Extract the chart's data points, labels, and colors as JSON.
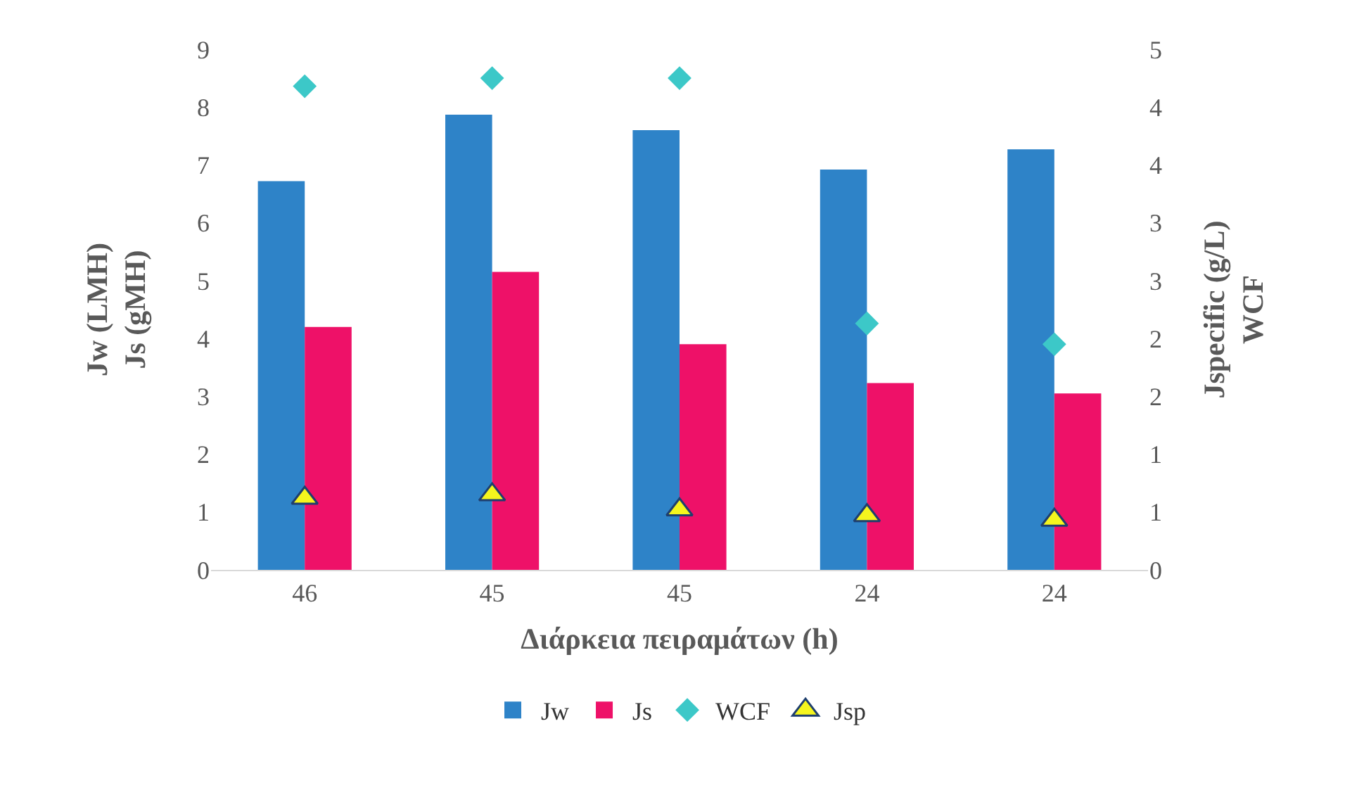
{
  "chart_data": {
    "type": "bar",
    "categories": [
      "46",
      "45",
      "45",
      "24",
      "24"
    ],
    "xlabel": "Διάρκεια πειραμάτων (h)",
    "ylabel": "Jw (LMH)\nJs (gMH)",
    "y2label": "Jspecific (g/L)\nWCF",
    "ylim": [
      0,
      9
    ],
    "yticks": [
      0,
      1,
      2,
      3,
      4,
      5,
      6,
      7,
      8,
      9
    ],
    "y2lim": [
      0,
      4.5
    ],
    "y2ticks": [
      {
        "value": 0,
        "label": "0"
      },
      {
        "value": 0.5,
        "label": "1"
      },
      {
        "value": 1,
        "label": "1"
      },
      {
        "value": 1.5,
        "label": "2"
      },
      {
        "value": 2,
        "label": "2"
      },
      {
        "value": 2.5,
        "label": "3"
      },
      {
        "value": 3,
        "label": "3"
      },
      {
        "value": 3.5,
        "label": "4"
      },
      {
        "value": 4,
        "label": "4"
      },
      {
        "value": 4.5,
        "label": "5"
      }
    ],
    "grid": false,
    "legend": "bottom",
    "series": [
      {
        "name": "Jw",
        "color": "#2e83c8",
        "values": [
          6.72,
          7.87,
          7.6,
          6.92,
          7.27
        ]
      },
      {
        "name": "Js",
        "color": "#ee1168",
        "values": [
          4.2,
          5.15,
          3.9,
          3.23,
          3.05
        ]
      },
      {
        "name": "WCF",
        "type": "scatter",
        "axis": "y2",
        "marker": "diamond",
        "color": "#3cc8c8",
        "values": [
          4.18,
          4.25,
          4.25,
          2.13,
          1.95
        ]
      },
      {
        "name": "Jsp",
        "type": "scatter",
        "axis": "y2",
        "marker": "triangle",
        "color": "#f5f51e",
        "values": [
          0.62,
          0.65,
          0.52,
          0.47,
          0.43
        ]
      }
    ]
  }
}
